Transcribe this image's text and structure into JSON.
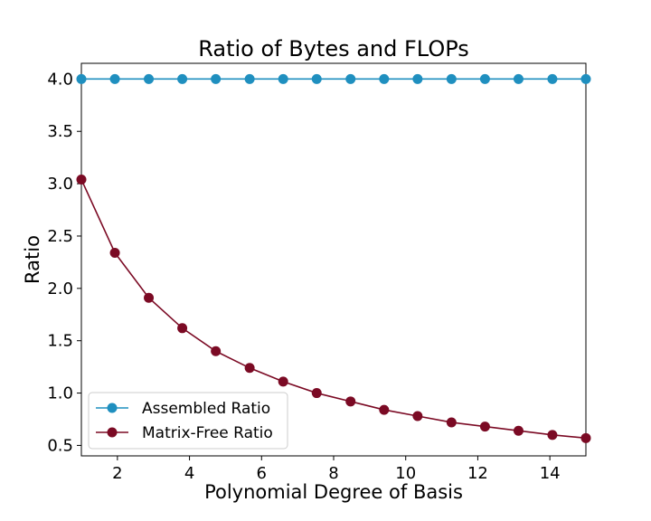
{
  "chart_data": {
    "type": "line",
    "title": "Ratio of Bytes and FLOPs",
    "xlabel": "Polynomial Degree of Basis",
    "ylabel": "Ratio",
    "xlim": [
      1,
      15
    ],
    "ylim": [
      0.4,
      4.15
    ],
    "xticks": [
      2,
      4,
      6,
      8,
      10,
      12,
      14
    ],
    "yticks": [
      0.5,
      1.0,
      1.5,
      2.0,
      2.5,
      3.0,
      3.5,
      4.0
    ],
    "ytick_labels": [
      "0.5",
      "1.0",
      "1.5",
      "2.0",
      "2.5",
      "3.0",
      "3.5",
      "4.0"
    ],
    "x": [
      1.0,
      1.93,
      2.87,
      3.8,
      4.73,
      5.67,
      6.6,
      7.53,
      8.47,
      9.4,
      10.33,
      11.27,
      12.2,
      13.13,
      14.07,
      15.0
    ],
    "series": [
      {
        "name": "Assembled Ratio",
        "color": "#1f8fbf",
        "values": [
          4.0,
          4.0,
          4.0,
          4.0,
          4.0,
          4.0,
          4.0,
          4.0,
          4.0,
          4.0,
          4.0,
          4.0,
          4.0,
          4.0,
          4.0,
          4.0
        ]
      },
      {
        "name": "Matrix-Free Ratio",
        "color": "#7b0a24",
        "values": [
          3.04,
          2.34,
          1.91,
          1.62,
          1.4,
          1.24,
          1.11,
          1.0,
          0.92,
          0.84,
          0.78,
          0.72,
          0.68,
          0.64,
          0.6,
          0.57
        ]
      }
    ],
    "grid": false,
    "legend_position": "lower-left"
  }
}
